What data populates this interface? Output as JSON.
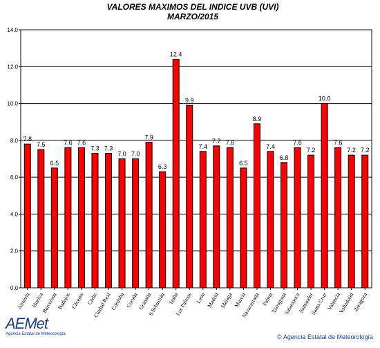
{
  "chart_data": {
    "type": "bar",
    "title": "VALORES MAXIMOS DEL INDICE UVB (UVI)",
    "subtitle": "MARZO/2015",
    "xlabel": "",
    "ylabel": "",
    "ylim": [
      0,
      14
    ],
    "yticks": [
      "0.0",
      "2.0",
      "4.0",
      "6.0",
      "8.0",
      "10.0",
      "12.0",
      "14.0"
    ],
    "grid": true,
    "bar_color": "#ff0000",
    "categories": [
      "Almería",
      "Huelva",
      "Barcelona",
      "Badajoz",
      "Cáceres",
      "Cádiz",
      "Ciudad Real",
      "Córdoba",
      "Coruña",
      "Granada",
      "S.Sebastián",
      "Izaña",
      "Las Palmas",
      "León",
      "Madrid",
      "Málaga",
      "Murcia",
      "Navacerrada",
      "Palma",
      "Tarragona",
      "Salamanca",
      "Santander",
      "Santa Cruz",
      "Valencia",
      "Valladolid",
      "Zaragoza"
    ],
    "values": [
      7.8,
      7.5,
      6.5,
      7.6,
      7.6,
      7.3,
      7.3,
      7.0,
      7.0,
      7.9,
      6.3,
      12.4,
      9.9,
      7.4,
      7.7,
      7.6,
      6.5,
      8.9,
      7.4,
      6.8,
      7.6,
      7.2,
      10.0,
      7.6,
      7.2,
      7.2
    ],
    "labels": [
      "7.8",
      "7.5",
      "6.5",
      "7.6",
      "7.6",
      "7.3",
      "7.3",
      "7.0",
      "7.0",
      "7.9",
      "6.3",
      "12.4",
      "9.9",
      "7.4",
      "7.7",
      "7.6",
      "6.5",
      "8.9",
      "7.4",
      "6.8",
      "7.6",
      "7.2",
      "10.0",
      "7.6",
      "7.2",
      "7.2"
    ]
  },
  "branding": {
    "logo_word": "AEMet",
    "logo_sub": "Agencia Estatal de Meteorología",
    "copyright": "© Agencia Estatal de Meteorología"
  }
}
